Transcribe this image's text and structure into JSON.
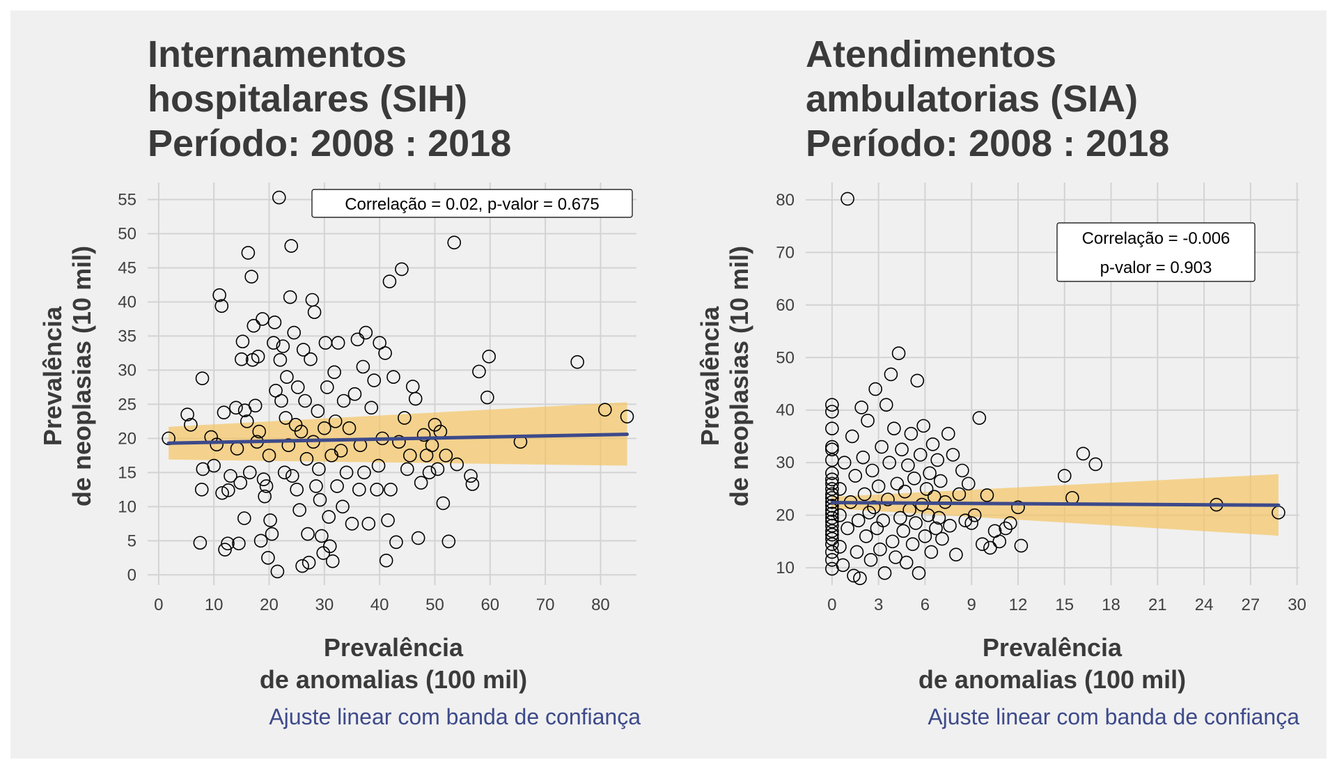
{
  "colors": {
    "background": "#f0f0f0",
    "grid": "#d3d3d3",
    "fit_line": "#3d4a8a",
    "band": "#f5c563",
    "points": "#000000",
    "text": "#3a3a3a",
    "caption": "#3d4a8a"
  },
  "chart_data": [
    {
      "type": "scatter",
      "title_lines": [
        "Internamentos",
        "hospitalares (SIH)",
        "Período: 2008 : 2018"
      ],
      "xlabel_lines": [
        "Prevalência",
        "de anomalias (100 mil)"
      ],
      "ylabel_lines": [
        "Prevalência",
        "de neoplasias (10 mil)"
      ],
      "caption": "Ajuste linear com banda de confiança",
      "annotation_lines": [
        "Correlação = 0.02, p-valor = 0.675"
      ],
      "xlim": [
        -2,
        86.5
      ],
      "ylim": [
        -1.5,
        57.5
      ],
      "xticks": [
        0,
        10,
        20,
        30,
        40,
        50,
        60,
        70,
        80
      ],
      "yticks": [
        0,
        5,
        10,
        15,
        20,
        25,
        30,
        35,
        40,
        45,
        50,
        55
      ],
      "grid": true,
      "fit": {
        "x": [
          1.8,
          84.8
        ],
        "y": [
          19.3,
          20.6
        ]
      },
      "band": {
        "x": [
          1.8,
          84.8
        ],
        "lower": [
          16.9,
          16.0
        ],
        "upper": [
          21.7,
          25.3
        ]
      },
      "points": [
        [
          1.8,
          20.0
        ],
        [
          5.2,
          23.5
        ],
        [
          5.8,
          22.0
        ],
        [
          7.5,
          4.7
        ],
        [
          7.8,
          12.5
        ],
        [
          7.9,
          28.8
        ],
        [
          8.0,
          15.5
        ],
        [
          9.5,
          20.2
        ],
        [
          10.0,
          16.0
        ],
        [
          10.5,
          19.1
        ],
        [
          11.0,
          41.0
        ],
        [
          11.4,
          39.4
        ],
        [
          11.5,
          12.0
        ],
        [
          11.8,
          23.8
        ],
        [
          12.0,
          3.7
        ],
        [
          12.5,
          4.6
        ],
        [
          12.6,
          12.4
        ],
        [
          13.0,
          14.5
        ],
        [
          14.0,
          24.5
        ],
        [
          14.2,
          18.5
        ],
        [
          14.5,
          4.6
        ],
        [
          14.8,
          13.5
        ],
        [
          15.0,
          31.6
        ],
        [
          15.2,
          34.2
        ],
        [
          15.5,
          8.3
        ],
        [
          15.6,
          24.1
        ],
        [
          16.0,
          22.5
        ],
        [
          16.2,
          47.2
        ],
        [
          16.5,
          15.0
        ],
        [
          16.8,
          43.7
        ],
        [
          17.0,
          31.5
        ],
        [
          17.2,
          36.5
        ],
        [
          17.5,
          24.8
        ],
        [
          17.8,
          19.5
        ],
        [
          18.0,
          32.0
        ],
        [
          18.2,
          21.0
        ],
        [
          18.5,
          5.0
        ],
        [
          18.8,
          37.5
        ],
        [
          19.0,
          14.0
        ],
        [
          19.2,
          11.5
        ],
        [
          19.5,
          13.0
        ],
        [
          19.8,
          2.5
        ],
        [
          20.0,
          17.5
        ],
        [
          20.2,
          8.0
        ],
        [
          20.5,
          6.0
        ],
        [
          20.8,
          34.0
        ],
        [
          21.0,
          37.0
        ],
        [
          21.2,
          27.0
        ],
        [
          21.5,
          0.5
        ],
        [
          21.8,
          55.3
        ],
        [
          22.0,
          31.5
        ],
        [
          22.2,
          25.5
        ],
        [
          22.5,
          33.5
        ],
        [
          22.8,
          15.0
        ],
        [
          23.0,
          23.0
        ],
        [
          23.2,
          29.0
        ],
        [
          23.5,
          19.0
        ],
        [
          23.8,
          40.7
        ],
        [
          24.0,
          48.2
        ],
        [
          24.2,
          14.5
        ],
        [
          24.5,
          35.5
        ],
        [
          24.8,
          22.0
        ],
        [
          25.0,
          12.5
        ],
        [
          25.2,
          27.5
        ],
        [
          25.5,
          9.5
        ],
        [
          25.8,
          21.0
        ],
        [
          26.0,
          1.3
        ],
        [
          26.2,
          33.0
        ],
        [
          26.5,
          25.5
        ],
        [
          26.8,
          17.0
        ],
        [
          27.0,
          6.0
        ],
        [
          27.2,
          1.8
        ],
        [
          27.5,
          31.6
        ],
        [
          27.8,
          40.3
        ],
        [
          28.0,
          19.5
        ],
        [
          28.2,
          38.5
        ],
        [
          28.5,
          13.0
        ],
        [
          28.8,
          24.0
        ],
        [
          29.0,
          15.5
        ],
        [
          29.2,
          11.0
        ],
        [
          29.5,
          5.7
        ],
        [
          29.8,
          3.2
        ],
        [
          30.0,
          21.5
        ],
        [
          30.2,
          34.0
        ],
        [
          30.5,
          27.5
        ],
        [
          30.8,
          8.5
        ],
        [
          31.0,
          4.2
        ],
        [
          31.3,
          17.5
        ],
        [
          31.5,
          2.0
        ],
        [
          31.8,
          29.7
        ],
        [
          32.0,
          22.5
        ],
        [
          32.3,
          13.0
        ],
        [
          32.5,
          34.0
        ],
        [
          33.0,
          18.2
        ],
        [
          33.3,
          10.0
        ],
        [
          33.5,
          25.5
        ],
        [
          34.0,
          15.0
        ],
        [
          34.5,
          21.5
        ],
        [
          35.0,
          7.5
        ],
        [
          35.5,
          26.5
        ],
        [
          36.0,
          34.5
        ],
        [
          36.3,
          12.5
        ],
        [
          36.5,
          19.0
        ],
        [
          37.0,
          30.5
        ],
        [
          37.2,
          15.0
        ],
        [
          37.5,
          35.5
        ],
        [
          38.0,
          7.5
        ],
        [
          38.5,
          24.5
        ],
        [
          39.0,
          28.5
        ],
        [
          39.5,
          12.5
        ],
        [
          39.8,
          16.0
        ],
        [
          40.0,
          34.0
        ],
        [
          40.5,
          20.0
        ],
        [
          41.0,
          32.5
        ],
        [
          41.2,
          2.1
        ],
        [
          41.5,
          8.0
        ],
        [
          41.8,
          43.0
        ],
        [
          42.0,
          12.5
        ],
        [
          42.5,
          29.0
        ],
        [
          43.0,
          4.8
        ],
        [
          43.5,
          19.5
        ],
        [
          44.0,
          44.8
        ],
        [
          44.5,
          23.0
        ],
        [
          45.0,
          15.5
        ],
        [
          45.5,
          17.5
        ],
        [
          46.0,
          27.6
        ],
        [
          46.5,
          25.8
        ],
        [
          47.0,
          5.4
        ],
        [
          47.5,
          13.5
        ],
        [
          48.0,
          20.5
        ],
        [
          48.5,
          17.5
        ],
        [
          49.0,
          15.0
        ],
        [
          49.5,
          19.0
        ],
        [
          50.0,
          22.0
        ],
        [
          50.5,
          15.5
        ],
        [
          51.0,
          21.0
        ],
        [
          51.5,
          10.5
        ],
        [
          52.0,
          17.5
        ],
        [
          52.5,
          4.9
        ],
        [
          53.5,
          48.7
        ],
        [
          54.0,
          16.2
        ],
        [
          56.5,
          14.5
        ],
        [
          56.8,
          13.3
        ],
        [
          58.0,
          29.8
        ],
        [
          59.5,
          26.0
        ],
        [
          59.8,
          32.0
        ],
        [
          65.5,
          19.5
        ],
        [
          75.8,
          31.2
        ],
        [
          80.8,
          24.2
        ],
        [
          84.8,
          23.2
        ]
      ]
    },
    {
      "type": "scatter",
      "title_lines": [
        "Atendimentos",
        "ambulatorias (SIA)",
        "Período: 2008 : 2018"
      ],
      "xlabel_lines": [
        "Prevalência",
        "de anomalias (100 mil)"
      ],
      "ylabel_lines": [
        "Prevalência",
        "de neoplasias (10 mil)"
      ],
      "caption": "Ajuste linear com banda de confiança",
      "annotation_lines": [
        "Correlação = -0.006",
        "p-valor = 0.903"
      ],
      "xlim": [
        -1.7,
        30.15
      ],
      "ylim": [
        6.7,
        83.3
      ],
      "xticks": [
        0,
        3,
        6,
        9,
        12,
        15,
        18,
        21,
        24,
        27,
        30
      ],
      "yticks": [
        10,
        20,
        30,
        40,
        50,
        60,
        70,
        80
      ],
      "grid": true,
      "fit": {
        "x": [
          0,
          28.8
        ],
        "y": [
          22.4,
          21.9
        ]
      },
      "band": {
        "x": [
          0,
          28.8
        ],
        "lower": [
          21.3,
          16.1
        ],
        "upper": [
          23.5,
          27.8
        ]
      },
      "points": [
        [
          0,
          9.8
        ],
        [
          0,
          11.5
        ],
        [
          0,
          13.0
        ],
        [
          0,
          14.5
        ],
        [
          0,
          15.5
        ],
        [
          0,
          16.3
        ],
        [
          0,
          17.0
        ],
        [
          0,
          18.0
        ],
        [
          0,
          18.8
        ],
        [
          0,
          19.5
        ],
        [
          0,
          20.3
        ],
        [
          0,
          21.0
        ],
        [
          0,
          21.8
        ],
        [
          0,
          22.5
        ],
        [
          0,
          23.3
        ],
        [
          0,
          24.0
        ],
        [
          0,
          25.0
        ],
        [
          0,
          26.0
        ],
        [
          0,
          26.8
        ],
        [
          0,
          28.0
        ],
        [
          0,
          30.5
        ],
        [
          0,
          32.5
        ],
        [
          0,
          33.0
        ],
        [
          0,
          36.5
        ],
        [
          0,
          39.7
        ],
        [
          0,
          41.0
        ],
        [
          0.5,
          14.0
        ],
        [
          0.5,
          20.0
        ],
        [
          0.5,
          25.0
        ],
        [
          0.7,
          10.5
        ],
        [
          0.8,
          30.0
        ],
        [
          1.0,
          80.2
        ],
        [
          1.0,
          17.5
        ],
        [
          1.2,
          22.5
        ],
        [
          1.3,
          35.0
        ],
        [
          1.4,
          8.5
        ],
        [
          1.5,
          27.5
        ],
        [
          1.6,
          13.0
        ],
        [
          1.7,
          19.0
        ],
        [
          1.8,
          8.0
        ],
        [
          1.9,
          40.5
        ],
        [
          2.0,
          31.0
        ],
        [
          2.1,
          24.0
        ],
        [
          2.2,
          16.0
        ],
        [
          2.3,
          38.0
        ],
        [
          2.4,
          20.5
        ],
        [
          2.5,
          11.5
        ],
        [
          2.6,
          28.5
        ],
        [
          2.7,
          21.5
        ],
        [
          2.8,
          44.0
        ],
        [
          2.9,
          17.5
        ],
        [
          3.0,
          25.5
        ],
        [
          3.1,
          13.5
        ],
        [
          3.2,
          33.0
        ],
        [
          3.3,
          19.0
        ],
        [
          3.4,
          9.0
        ],
        [
          3.5,
          41.0
        ],
        [
          3.6,
          23.0
        ],
        [
          3.7,
          30.0
        ],
        [
          3.8,
          46.8
        ],
        [
          3.9,
          15.0
        ],
        [
          4.0,
          36.5
        ],
        [
          4.1,
          12.0
        ],
        [
          4.2,
          26.0
        ],
        [
          4.3,
          50.8
        ],
        [
          4.4,
          19.5
        ],
        [
          4.5,
          32.5
        ],
        [
          4.6,
          17.0
        ],
        [
          4.7,
          24.5
        ],
        [
          4.8,
          11.0
        ],
        [
          4.9,
          29.5
        ],
        [
          5.0,
          21.0
        ],
        [
          5.1,
          35.5
        ],
        [
          5.2,
          14.5
        ],
        [
          5.3,
          27.0
        ],
        [
          5.4,
          18.5
        ],
        [
          5.5,
          45.6
        ],
        [
          5.6,
          9.0
        ],
        [
          5.7,
          31.5
        ],
        [
          5.8,
          22.0
        ],
        [
          5.9,
          37.0
        ],
        [
          6.0,
          16.0
        ],
        [
          6.1,
          25.0
        ],
        [
          6.2,
          20.0
        ],
        [
          6.3,
          28.0
        ],
        [
          6.4,
          13.0
        ],
        [
          6.5,
          33.5
        ],
        [
          6.6,
          23.5
        ],
        [
          6.7,
          17.5
        ],
        [
          6.8,
          30.5
        ],
        [
          6.9,
          19.5
        ],
        [
          7.0,
          26.5
        ],
        [
          7.1,
          15.5
        ],
        [
          7.3,
          22.5
        ],
        [
          7.5,
          35.5
        ],
        [
          7.6,
          18.0
        ],
        [
          7.8,
          31.5
        ],
        [
          8.0,
          12.5
        ],
        [
          8.2,
          24.0
        ],
        [
          8.4,
          28.5
        ],
        [
          8.6,
          19.0
        ],
        [
          8.8,
          26.0
        ],
        [
          9.0,
          18.5
        ],
        [
          9.2,
          20.0
        ],
        [
          9.5,
          38.5
        ],
        [
          9.7,
          14.5
        ],
        [
          10.0,
          23.8
        ],
        [
          10.2,
          13.8
        ],
        [
          10.5,
          17.0
        ],
        [
          10.8,
          15.0
        ],
        [
          11.2,
          17.5
        ],
        [
          11.5,
          18.5
        ],
        [
          12.0,
          21.5
        ],
        [
          12.2,
          14.2
        ],
        [
          15.0,
          27.5
        ],
        [
          15.5,
          23.3
        ],
        [
          16.2,
          31.7
        ],
        [
          17.0,
          29.7
        ],
        [
          24.8,
          22.0
        ],
        [
          28.8,
          20.5
        ]
      ]
    }
  ]
}
